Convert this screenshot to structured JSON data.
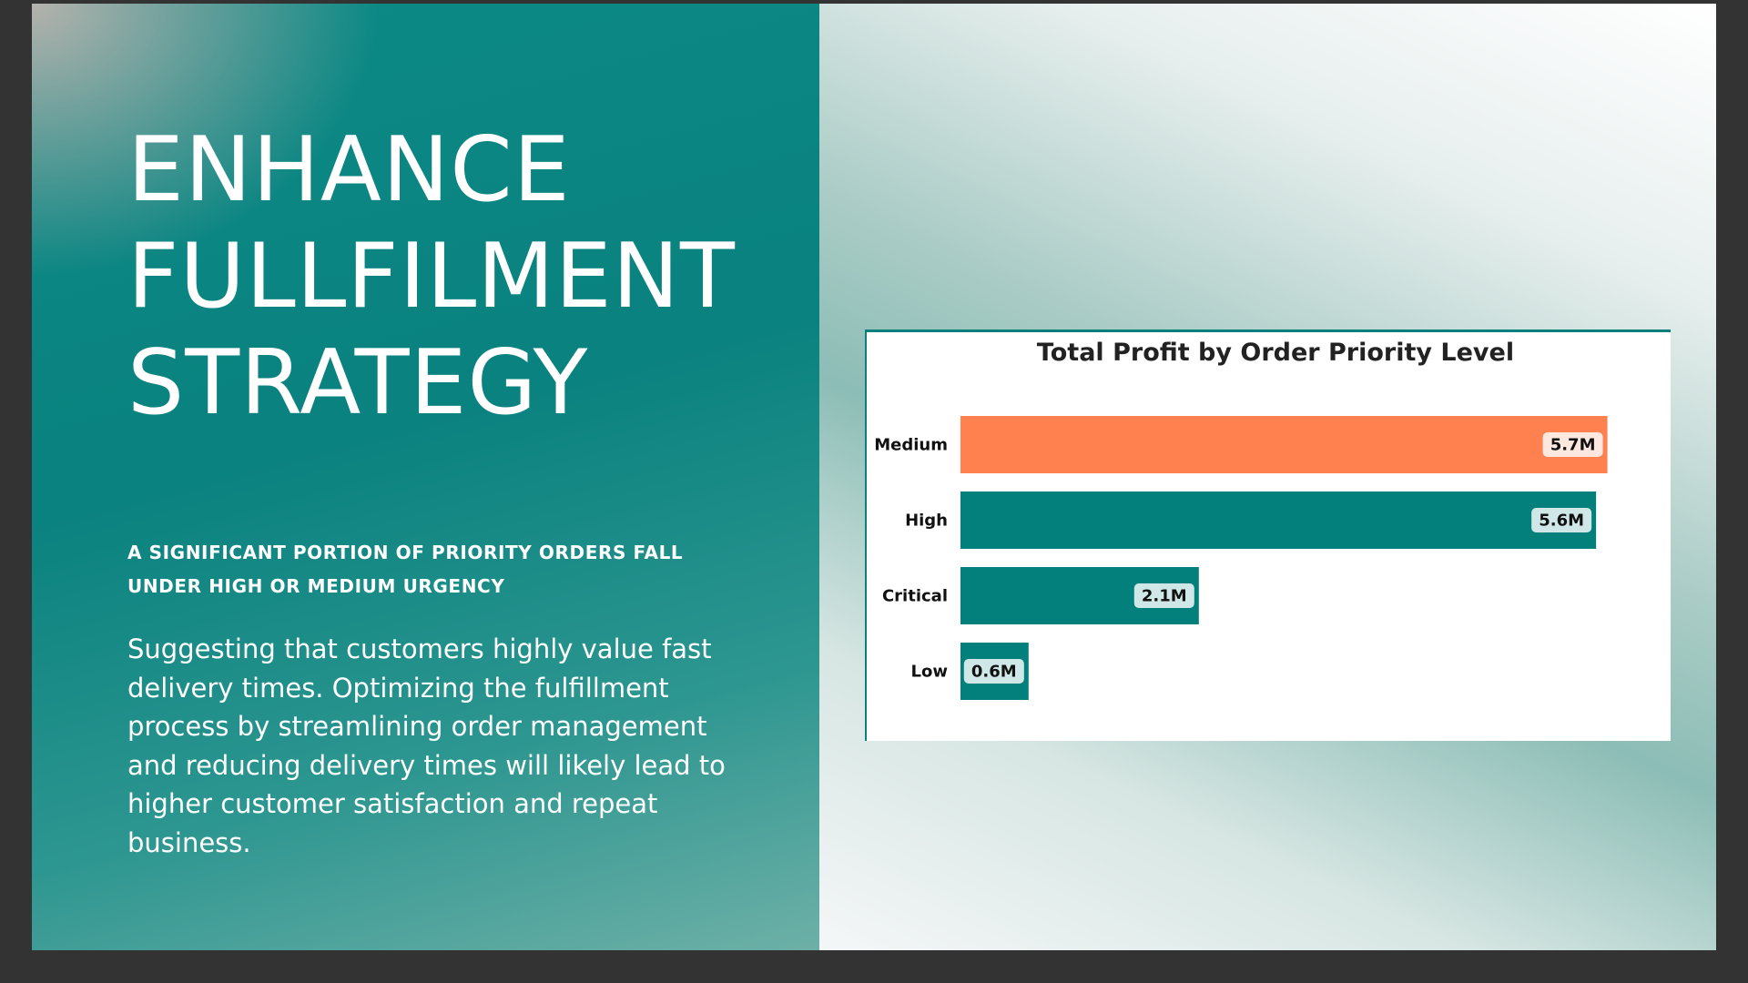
{
  "slide": {
    "headline": [
      "ENHANCE",
      "FULLFILMENT",
      "STRATEGY"
    ],
    "subhead": "A SIGNIFICANT PORTION OF PRIORITY ORDERS FALL UNDER HIGH OR MEDIUM URGENCY",
    "body": "Suggesting that customers highly value fast delivery times. Optimizing the fulfillment process by streamlining order management and reducing delivery times will likely lead to higher customer satisfaction and repeat business."
  },
  "colors": {
    "teal": "#037f7c",
    "orange": "#ff8150",
    "highlight_label_bg": "#fde8df",
    "label_bg": "#cfe7e6"
  },
  "chart_data": {
    "type": "bar",
    "orientation": "horizontal",
    "title": "Total Profit by Order Priority Level",
    "categories": [
      "Medium",
      "High",
      "Critical",
      "Low"
    ],
    "values": [
      5.7,
      5.6,
      2.1,
      0.6
    ],
    "value_labels": [
      "5.7M",
      "5.6M",
      "2.1M",
      "0.6M"
    ],
    "highlight": "Medium",
    "xlim": [
      0,
      6
    ],
    "grid": false,
    "legend": "none"
  }
}
